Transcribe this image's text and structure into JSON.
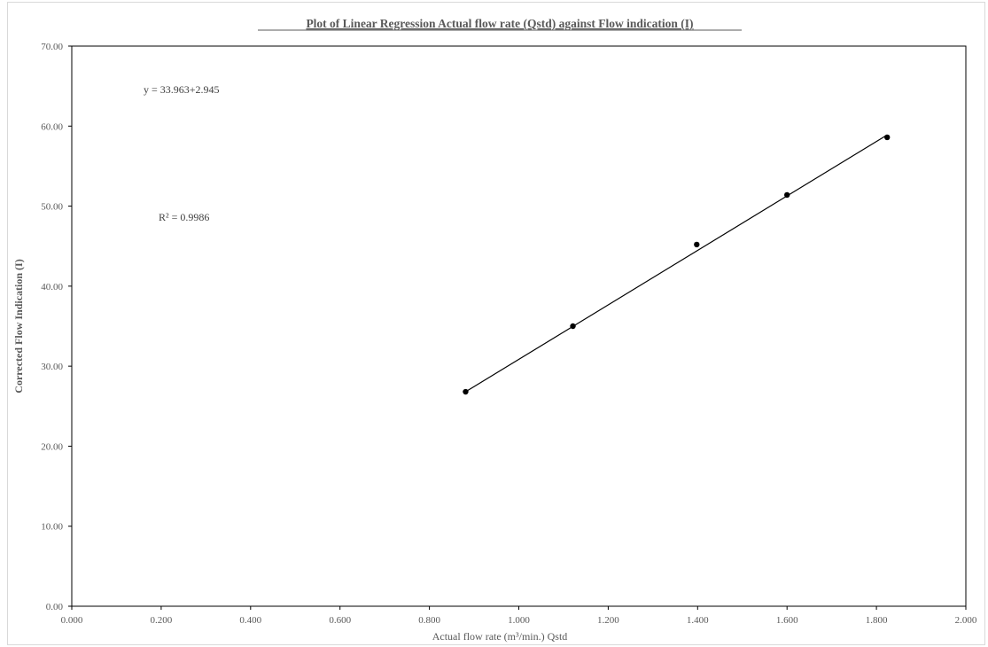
{
  "chart_data": {
    "type": "scatter",
    "title": "Plot of Linear Regression Actual flow rate (Qstd) against Flow indication (I)",
    "xlabel": "Actual flow rate (m³/min.) Qstd",
    "ylabel": "Corrected Flow Indication (I)",
    "xlim": [
      0,
      2
    ],
    "ylim": [
      0,
      70
    ],
    "x_ticks": [
      "0.000",
      "0.200",
      "0.400",
      "0.600",
      "0.800",
      "1.000",
      "1.200",
      "1.400",
      "1.600",
      "1.800",
      "2.000"
    ],
    "y_ticks": [
      "0.00",
      "10.00",
      "20.00",
      "30.00",
      "40.00",
      "50.00",
      "60.00",
      "70.00"
    ],
    "grid": false,
    "series": [
      {
        "points": [
          {
            "x": 0.881,
            "y": 26.8
          },
          {
            "x": 1.121,
            "y": 35.0
          },
          {
            "x": 1.398,
            "y": 45.2
          },
          {
            "x": 1.6,
            "y": 51.4
          },
          {
            "x": 1.824,
            "y": 58.6
          }
        ],
        "color": "#000000"
      }
    ],
    "trendline": {
      "x_range": [
        0.881,
        1.824
      ],
      "y_range": [
        26.8,
        58.9
      ],
      "color": "#000000"
    },
    "annotations": {
      "equation": "y = 33.963+2.945",
      "r_squared": "R² = 0.9986"
    }
  }
}
